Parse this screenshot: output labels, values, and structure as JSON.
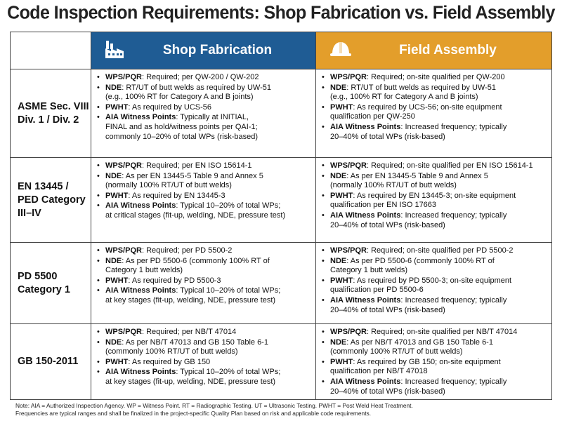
{
  "title": "Code Inspection Requirements: Shop Fabrication vs. Field Assembly",
  "header": {
    "shop": {
      "label": "Shop Fabrication",
      "icon": "factory-icon",
      "color": "#1f5c94"
    },
    "field": {
      "label": "Field Assembly",
      "icon": "hard-hat-icon",
      "color": "#e39e2b"
    }
  },
  "rows": [
    {
      "code": "ASME Sec. VIII\nDiv. 1 / Div. 2",
      "shop": [
        {
          "term": "WPS/PQR",
          "text": ": Required; per QW-200 / QW-202"
        },
        {
          "term": "NDE",
          "text": ": RT/UT of butt welds as required by UW-51\n(e.g., 100% RT for Category A and B joints)"
        },
        {
          "term": "PWHT",
          "text": ": As required by UCS-56"
        },
        {
          "term": "AIA Witness Points",
          "text": ": Typically at INITIAL,\nFINAL and as hold/witness points per QAI-1;\ncommonly 10–20% of total WPs (risk-based)"
        }
      ],
      "field": [
        {
          "term": "WPS/PQR",
          "text": ": Required; on-site qualified per QW-200"
        },
        {
          "term": "NDE",
          "text": ": RT/UT of butt welds as required by UW-51\n(e.g., 100% RT for Category A and B joints)"
        },
        {
          "term": "PWHT",
          "text": ": As required by UCS-56; on-site equipment\nqualification per QW-250"
        },
        {
          "term": "AIA Witness Points",
          "text": ": Increased frequency; typically\n20–40% of total WPs (risk-based)"
        }
      ]
    },
    {
      "code": "EN 13445 /\nPED Category\nIII–IV",
      "shop": [
        {
          "term": "WPS/PQR",
          "text": ": Required; per EN ISO 15614-1"
        },
        {
          "term": "NDE",
          "text": ": As per EN 13445-5 Table 9 and Annex 5\n(normally 100% RT/UT of butt welds)"
        },
        {
          "term": "PWHT",
          "text": ": As required by EN 13445-3"
        },
        {
          "term": "AIA Witness Points",
          "text": ": Typical 10–20% of total WPs;\nat critical stages (fit-up, welding, NDE, pressure test)"
        }
      ],
      "field": [
        {
          "term": "WPS/PQR",
          "text": ": Required; on-site qualified per EN ISO 15614-1"
        },
        {
          "term": "NDE",
          "text": ": As per EN 13445-5 Table 9 and Annex 5\n(normally 100% RT/UT of butt welds)"
        },
        {
          "term": "PWHT",
          "text": ": As required by EN 13445-3; on-site equipment\nqualification per EN ISO 17663"
        },
        {
          "term": "AIA Witness Points",
          "text": ": Increased frequency; typically\n20–40% of total WPs (risk-based)"
        }
      ]
    },
    {
      "code": "PD 5500\nCategory 1",
      "shop": [
        {
          "term": "WPS/PQR",
          "text": ": Required; per PD 5500-2"
        },
        {
          "term": "NDE",
          "text": ": As per PD 5500-6 (commonly 100% RT of\nCategory 1 butt welds)"
        },
        {
          "term": "PWHT",
          "text": ": As required by PD 5500-3"
        },
        {
          "term": "AIA Witness Points",
          "text": ": Typical 10–20% of total WPs;\nat key stages (fit-up, welding, NDE, pressure test)"
        }
      ],
      "field": [
        {
          "term": "WPS/PQR",
          "text": ": Required; on-site qualified per PD 5500-2"
        },
        {
          "term": "NDE",
          "text": ": As per PD 5500-6 (commonly 100% RT of\nCategory 1 butt welds)"
        },
        {
          "term": "PWHT",
          "text": ": As required by PD 5500-3; on-site equipment\nqualification per PD 5500-6"
        },
        {
          "term": "AIA Witness Points",
          "text": ": Increased frequency; typically\n20–40% of total WPs (risk-based)"
        }
      ]
    },
    {
      "code": "GB 150-2011",
      "shop": [
        {
          "term": "WPS/PQR",
          "text": ": Required; per NB/T 47014"
        },
        {
          "term": "NDE",
          "text": ": As per NB/T 47013 and GB 150 Table 6-1\n(commonly 100% RT/UT of butt welds)"
        },
        {
          "term": "PWHT",
          "text": ": As required by GB 150"
        },
        {
          "term": "AIA Witness Points",
          "text": ": Typical 10–20% of total WPs;\nat key stages (fit-up, welding, NDE, pressure test)"
        }
      ],
      "field": [
        {
          "term": "WPS/PQR",
          "text": ": Required; on-site qualified per NB/T 47014"
        },
        {
          "term": "NDE",
          "text": ": As per NB/T 47013 and GB 150 Table 6-1\n(commonly 100% RT/UT of butt welds)"
        },
        {
          "term": "PWHT",
          "text": ": As required by GB 150; on-site equipment\nqualification per NB/T 47018"
        },
        {
          "term": "AIA Witness Points",
          "text": ": Increased frequency; typically\n20–40% of total WPs (risk-based)"
        }
      ]
    }
  ],
  "notes": [
    "Note: AIA = Authorized Inspection Agency. WP = Witness Point. RT = Radiographic Testing. UT = Ultrasonic Testing. PWHT = Post Weld Heat Treatment.",
    "Frequencies are typical ranges and shall be finalized in the project-specific Quality Plan based on risk and applicable code requirements."
  ]
}
